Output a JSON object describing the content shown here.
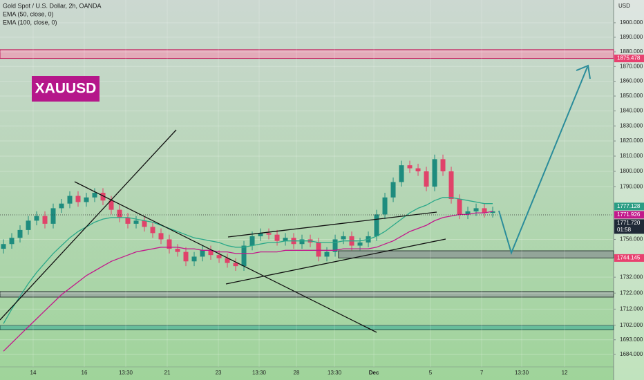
{
  "chart_data": {
    "type": "candlestick",
    "title": "Gold Spot / U.S. Dollar, 2h, OANDA",
    "badge": "XAUUSD",
    "y_axis_label": "USD",
    "log_scale": true,
    "grid": true,
    "up_color": "#1e8c7e",
    "down_color": "#e0436a",
    "xlim": [
      -0.417,
      73.58
    ],
    "xticks": [
      {
        "value": 3.58,
        "label": "14"
      },
      {
        "value": 9.75,
        "label": "16"
      },
      {
        "value": 14.75,
        "label": "13:30"
      },
      {
        "value": 19.75,
        "label": "21"
      },
      {
        "value": 25.92,
        "label": "23"
      },
      {
        "value": 30.83,
        "label": "13:30"
      },
      {
        "value": 35.33,
        "label": "28"
      },
      {
        "value": 39.92,
        "label": "13:30"
      },
      {
        "value": 44.67,
        "label": "Dec"
      },
      {
        "value": 51.5,
        "label": "5"
      },
      {
        "value": 57.67,
        "label": "7"
      },
      {
        "value": 62.5,
        "label": "13:30"
      },
      {
        "value": 67.67,
        "label": "12"
      }
    ],
    "ylim": [
      1668.4,
      1915.8
    ],
    "yticks": [
      {
        "value": 1684,
        "label": "1684.000"
      },
      {
        "value": 1693,
        "label": "1693.000"
      },
      {
        "value": 1702,
        "label": "1702.000"
      },
      {
        "value": 1712,
        "label": "1712.000"
      },
      {
        "value": 1722,
        "label": "1722.000"
      },
      {
        "value": 1732,
        "label": "1732.000"
      },
      {
        "value": 1756,
        "label": "1756.000"
      },
      {
        "value": 1790,
        "label": "1790.000"
      },
      {
        "value": 1800,
        "label": "1800.000"
      },
      {
        "value": 1810,
        "label": "1810.000"
      },
      {
        "value": 1820,
        "label": "1820.000"
      },
      {
        "value": 1830,
        "label": "1830.000"
      },
      {
        "value": 1840,
        "label": "1840.000"
      },
      {
        "value": 1850,
        "label": "1850.000"
      },
      {
        "value": 1860,
        "label": "1860.000"
      },
      {
        "value": 1870,
        "label": "1870.000"
      },
      {
        "value": 1880,
        "label": "1880.000"
      },
      {
        "value": 1890,
        "label": "1890.000"
      },
      {
        "value": 1900,
        "label": "1900.000"
      }
    ],
    "open": [
      1750,
      1753,
      1757,
      1762,
      1768,
      1771,
      1766,
      1776,
      1779,
      1784,
      1780,
      1783,
      1786,
      1781,
      1775,
      1770,
      1766,
      1768,
      1764,
      1760,
      1756,
      1750,
      1748,
      1742,
      1745,
      1749,
      1746,
      1744,
      1741,
      1739,
      1752,
      1758,
      1760,
      1759,
      1755,
      1757,
      1753,
      1756,
      1754,
      1745,
      1748,
      1756,
      1758,
      1752,
      1754,
      1758,
      1772,
      1783,
      1793,
      1804,
      1802,
      1800,
      1790,
      1808,
      1800,
      1782,
      1772,
      1774,
      1776,
      1773
    ],
    "high": [
      1756,
      1760,
      1765,
      1771,
      1774,
      1774,
      1779,
      1782,
      1787,
      1787,
      1786,
      1789,
      1789,
      1784,
      1778,
      1773,
      1771,
      1771,
      1767,
      1763,
      1759,
      1753,
      1751,
      1748,
      1752,
      1752,
      1749,
      1747,
      1744,
      1755,
      1761,
      1763,
      1763,
      1762,
      1760,
      1760,
      1759,
      1759,
      1757,
      1751,
      1759,
      1761,
      1761,
      1757,
      1761,
      1775,
      1786,
      1796,
      1807,
      1807,
      1805,
      1803,
      1811,
      1811,
      1803,
      1785,
      1777,
      1779,
      1779,
      1777
    ],
    "low": [
      1747,
      1750,
      1754,
      1759,
      1765,
      1763,
      1763,
      1773,
      1776,
      1777,
      1777,
      1780,
      1778,
      1772,
      1767,
      1763,
      1763,
      1761,
      1757,
      1753,
      1747,
      1745,
      1739,
      1739,
      1742,
      1743,
      1741,
      1738,
      1736,
      1736,
      1749,
      1755,
      1756,
      1752,
      1752,
      1750,
      1750,
      1751,
      1742,
      1742,
      1745,
      1753,
      1749,
      1749,
      1751,
      1755,
      1769,
      1780,
      1790,
      1799,
      1797,
      1787,
      1787,
      1797,
      1779,
      1769,
      1769,
      1771,
      1770,
      1770
    ],
    "close": [
      1753,
      1757,
      1762,
      1768,
      1771,
      1766,
      1776,
      1779,
      1784,
      1780,
      1783,
      1786,
      1781,
      1775,
      1770,
      1766,
      1768,
      1764,
      1760,
      1756,
      1750,
      1748,
      1742,
      1745,
      1749,
      1746,
      1744,
      1741,
      1739,
      1752,
      1758,
      1760,
      1759,
      1755,
      1757,
      1753,
      1756,
      1754,
      1745,
      1748,
      1756,
      1758,
      1752,
      1754,
      1758,
      1772,
      1783,
      1793,
      1804,
      1802,
      1800,
      1790,
      1808,
      1800,
      1782,
      1772,
      1774,
      1776,
      1773,
      1774
    ],
    "series": [
      {
        "name": "EMA (50, close, 0)",
        "color": "#2aa889",
        "values": [
          1703,
          1712,
          1720,
          1728,
          1735,
          1741,
          1747,
          1752,
          1757,
          1761,
          1764,
          1767,
          1769,
          1770,
          1770,
          1770,
          1769,
          1768,
          1767,
          1765,
          1763,
          1761,
          1759,
          1757,
          1756,
          1755,
          1754,
          1752,
          1751,
          1751,
          1752,
          1753,
          1754,
          1754,
          1755,
          1755,
          1755,
          1755,
          1754,
          1754,
          1754,
          1755,
          1755,
          1755,
          1756,
          1758,
          1761,
          1765,
          1769,
          1773,
          1776,
          1778,
          1781,
          1783,
          1783,
          1782,
          1781,
          1780,
          1779,
          1779
        ]
      },
      {
        "name": "EMA (100, close, 0)",
        "color": "#c2188b",
        "values": [
          1686,
          1691,
          1696,
          1701,
          1706,
          1711,
          1716,
          1721,
          1725,
          1729,
          1733,
          1736,
          1739,
          1742,
          1744,
          1746,
          1748,
          1749,
          1750,
          1751,
          1751,
          1751,
          1750,
          1750,
          1749,
          1749,
          1748,
          1748,
          1747,
          1747,
          1747,
          1748,
          1748,
          1748,
          1749,
          1749,
          1749,
          1749,
          1749,
          1749,
          1749,
          1750,
          1750,
          1750,
          1750,
          1751,
          1753,
          1755,
          1758,
          1761,
          1763,
          1765,
          1768,
          1770,
          1771,
          1772,
          1772,
          1773,
          1773,
          1774
        ]
      }
    ],
    "zones": [
      {
        "from": 1875.478,
        "to": 1881.5,
        "color": "#e8a3b6",
        "border": "#c2185b"
      },
      {
        "from": 1744.145,
        "to": 1748.7,
        "color": "#8e9c95",
        "border": "#2e3b36",
        "start": 40.4
      },
      {
        "from": 1719.5,
        "to": 1723,
        "color": "#9aa8a0",
        "border": "#2e3b36"
      },
      {
        "from": 1699.2,
        "to": 1701.9,
        "color": "#5cb89a",
        "border": "#1f4f44"
      }
    ],
    "price_tags": [
      {
        "value": 1875.478,
        "label": "1875.478",
        "color": "#e8406f"
      },
      {
        "value": 1777.128,
        "label": "1777.128",
        "color": "#2a9d84"
      },
      {
        "value": 1771.926,
        "label": "1771.926",
        "color": "#c2188b"
      },
      {
        "value": 1771.72,
        "label": "1771.720",
        "color": "#1f2937",
        "sub": "01:58"
      },
      {
        "value": 1744.145,
        "label": "1744.145",
        "color": "#e8406f"
      }
    ]
  }
}
